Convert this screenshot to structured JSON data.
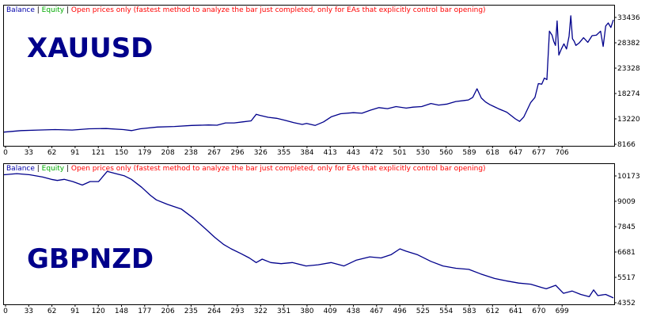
{
  "chart_data": [
    {
      "type": "line",
      "symbol_label": "XAUUSD",
      "legend": [
        {
          "text": "Balance",
          "color": "#0000aa"
        },
        {
          "text": "Equity",
          "color": "#00aa00"
        },
        {
          "text": "Open prices only (fastest method to analyze the bar just completed, only for EAs that explicitly control bar opening)",
          "color": "#ff0000"
        }
      ],
      "x_ticks": [
        "0",
        "33",
        "62",
        "91",
        "121",
        "150",
        "179",
        "208",
        "238",
        "267",
        "296",
        "326",
        "355",
        "384",
        "413",
        "443",
        "472",
        "501",
        "530",
        "560",
        "589",
        "618",
        "647",
        "677",
        "706"
      ],
      "y_ticks": [
        "33436",
        "28382",
        "23328",
        "18274",
        "13220",
        "8166"
      ],
      "xlim": [
        0,
        715
      ],
      "ylim": [
        8166,
        35200
      ],
      "grid": false,
      "line_color": "#00008b",
      "series": [
        {
          "x": [
            0,
            20,
            40,
            60,
            80,
            100,
            120,
            140,
            150,
            160,
            180,
            200,
            220,
            240,
            250,
            260,
            270,
            280,
            290,
            296,
            300,
            310,
            320,
            330,
            340,
            350,
            355,
            365,
            375,
            384,
            395,
            410,
            420,
            430,
            440,
            450,
            460,
            472,
            480,
            490,
            501,
            510,
            520,
            530,
            540,
            545,
            550,
            555,
            560,
            565,
            570,
            575,
            580,
            590,
            600,
            605,
            610,
            618,
            623,
            627,
            631,
            634,
            637,
            640,
            643,
            645,
            647,
            649,
            651,
            654,
            657,
            660,
            663,
            665,
            667,
            669,
            671,
            675,
            680,
            685,
            690,
            695,
            700,
            703,
            706,
            709,
            712,
            715
          ],
          "values": [
            10700,
            11000,
            11100,
            11200,
            11100,
            11350,
            11400,
            11200,
            11000,
            11350,
            11700,
            11800,
            12000,
            12100,
            12050,
            12500,
            12500,
            12700,
            12900,
            14200,
            14000,
            13600,
            13400,
            13000,
            12550,
            12200,
            12400,
            12000,
            12700,
            13700,
            14300,
            14500,
            14400,
            15000,
            15500,
            15300,
            15700,
            15400,
            15600,
            15700,
            16300,
            16000,
            16200,
            16700,
            16900,
            17000,
            17500,
            19200,
            17400,
            16600,
            16100,
            15700,
            15300,
            14600,
            13300,
            12800,
            13700,
            16500,
            17500,
            20200,
            20100,
            21300,
            21000,
            30500,
            29700,
            28500,
            27700,
            32500,
            25800,
            27000,
            28000,
            27000,
            29500,
            33500,
            29000,
            28500,
            27700,
            28200,
            29200,
            28300,
            29600,
            29700,
            30500,
            27500,
            31500,
            32100,
            31200,
            32700
          ]
        }
      ]
    },
    {
      "type": "line",
      "symbol_label": "GBPNZD",
      "legend": [
        {
          "text": "Balance",
          "color": "#0000aa"
        },
        {
          "text": "Equity",
          "color": "#00aa00"
        },
        {
          "text": "Open prices only (fastest method to analyze the bar just completed, only for EAs that explicitly control bar opening)",
          "color": "#ff0000"
        }
      ],
      "x_ticks": [
        "0",
        "33",
        "62",
        "91",
        "120",
        "148",
        "177",
        "206",
        "235",
        "264",
        "293",
        "322",
        "351",
        "380",
        "409",
        "438",
        "467",
        "496",
        "525",
        "554",
        "583",
        "612",
        "641",
        "670",
        "699"
      ],
      "y_ticks": [
        "10173",
        "9009",
        "7845",
        "6681",
        "5517",
        "4352"
      ],
      "xlim": [
        0,
        708
      ],
      "ylim": [
        4352,
        10400
      ],
      "grid": false,
      "line_color": "#00008b",
      "series": [
        {
          "x": [
            0,
            15,
            30,
            45,
            55,
            62,
            70,
            80,
            91,
            100,
            110,
            120,
            130,
            140,
            148,
            160,
            170,
            177,
            190,
            206,
            220,
            235,
            245,
            255,
            264,
            275,
            285,
            293,
            300,
            310,
            322,
            335,
            351,
            365,
            380,
            395,
            409,
            425,
            438,
            450,
            460,
            467,
            480,
            496,
            510,
            525,
            540,
            554,
            570,
            583,
            598,
            612,
            625,
            630,
            641,
            650,
            660,
            670,
            680,
            685,
            690,
            699,
            705,
            708
          ],
          "values": [
            10000,
            10050,
            10000,
            9900,
            9800,
            9750,
            9800,
            9700,
            9550,
            9700,
            9700,
            10150,
            10050,
            9950,
            9800,
            9450,
            9100,
            8900,
            8700,
            8500,
            8100,
            7600,
            7250,
            6950,
            6750,
            6550,
            6350,
            6150,
            6300,
            6150,
            6100,
            6150,
            6000,
            6050,
            6150,
            6000,
            6250,
            6400,
            6350,
            6500,
            6750,
            6650,
            6500,
            6200,
            6000,
            5900,
            5850,
            5650,
            5450,
            5350,
            5250,
            5200,
            5050,
            5000,
            5150,
            4800,
            4900,
            4750,
            4650,
            4950,
            4700,
            4750,
            4650,
            4600
          ]
        }
      ]
    }
  ]
}
